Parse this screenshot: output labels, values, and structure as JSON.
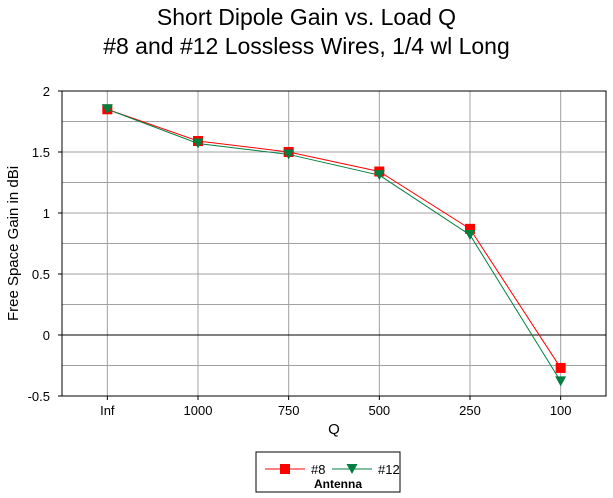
{
  "chart_data": {
    "type": "line",
    "title": "Short Dipole Gain vs. Load Q",
    "subtitle": "#8 and #12 Lossless Wires, 1/4 wl Long",
    "xlabel": "Q",
    "ylabel": "Free Space Gain in dBi",
    "categories": [
      "Inf",
      "1000",
      "750",
      "500",
      "250",
      "100"
    ],
    "ylim": [
      -0.5,
      2
    ],
    "yticks": [
      "2",
      "1.5",
      "1",
      "0.5",
      "0",
      "-0.5"
    ],
    "ytick_values": [
      2,
      1.5,
      1,
      0.5,
      0,
      -0.5
    ],
    "grid": true,
    "legend_position": "bottom-center",
    "legend_title": "Antenna",
    "series": [
      {
        "name": "#8",
        "values": [
          1.85,
          1.59,
          1.5,
          1.34,
          0.87,
          -0.27
        ],
        "color": "#ff0000",
        "marker": "square"
      },
      {
        "name": "#12",
        "values": [
          1.85,
          1.57,
          1.48,
          1.31,
          0.82,
          -0.38
        ],
        "color": "#008040",
        "marker": "triangle-down"
      }
    ]
  }
}
